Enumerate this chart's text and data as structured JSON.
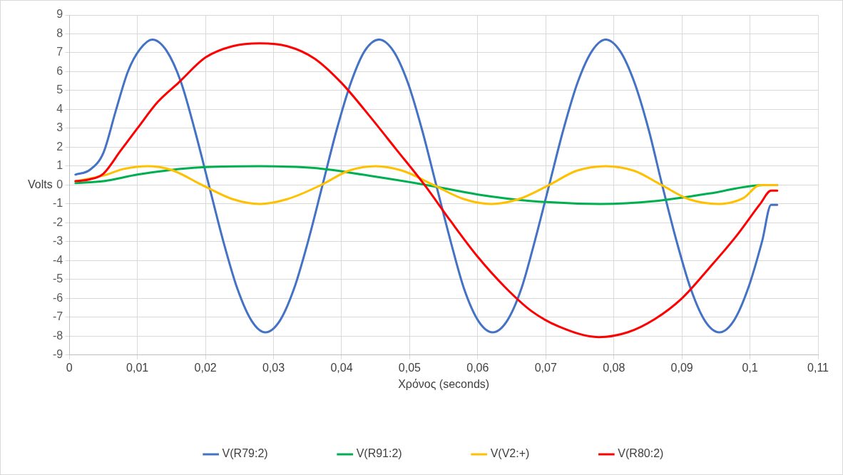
{
  "chart_data": {
    "type": "line",
    "xlabel": "Χρόνος (seconds)",
    "ylabel": "Volts",
    "xlim": [
      0,
      0.11
    ],
    "xticks": [
      0,
      {
        "value": 0.01,
        "label": "0,01"
      },
      {
        "value": 0.02,
        "label": "0,02"
      },
      {
        "value": 0.03,
        "label": "0,03"
      },
      {
        "value": 0.04,
        "label": "0,04"
      },
      {
        "value": 0.05,
        "label": "0,05"
      },
      {
        "value": 0.06,
        "label": "0,06"
      },
      {
        "value": 0.07,
        "label": "0,07"
      },
      {
        "value": 0.08,
        "label": "0,08"
      },
      {
        "value": 0.09,
        "label": "0,09"
      },
      {
        "value": 0.1,
        "label": "0,1"
      },
      {
        "value": 0.11,
        "label": "0,11"
      }
    ],
    "ylim": [
      -9,
      9
    ],
    "yticks": [
      -9,
      -8,
      -7,
      -6,
      -5,
      -4,
      -3,
      -2,
      -1,
      0,
      1,
      2,
      3,
      4,
      5,
      6,
      7,
      8,
      9
    ],
    "grid": true,
    "legend": "bottom",
    "line_style": "solid",
    "series": [
      {
        "name": "V(R79:2)",
        "color": "#4472c4",
        "x": [
          0.0009,
          0.003,
          0.005,
          0.0068,
          0.0086,
          0.0104,
          0.0122,
          0.0143,
          0.0164,
          0.0184,
          0.0205,
          0.0226,
          0.0247,
          0.0268,
          0.0288,
          0.0309,
          0.033,
          0.0351,
          0.0372,
          0.0393,
          0.0414,
          0.0434,
          0.0455,
          0.0476,
          0.0497,
          0.0518,
          0.0539,
          0.056,
          0.058,
          0.0601,
          0.0622,
          0.0643,
          0.0664,
          0.0684,
          0.0705,
          0.0726,
          0.0747,
          0.0768,
          0.0788,
          0.0809,
          0.083,
          0.0851,
          0.0871,
          0.0892,
          0.0913,
          0.0934,
          0.0955,
          0.0976,
          0.0997,
          0.1018,
          0.1031,
          0.104
        ],
        "values": [
          0.55,
          0.8,
          1.7,
          3.9,
          6.0,
          7.2,
          7.7,
          7.1,
          5.45,
          2.95,
          0,
          -2.95,
          -5.5,
          -7.2,
          -7.8,
          -7.2,
          -5.5,
          -2.95,
          0,
          2.95,
          5.45,
          7.1,
          7.7,
          7.1,
          5.45,
          2.95,
          0,
          -2.95,
          -5.5,
          -7.2,
          -7.8,
          -7.2,
          -5.5,
          -2.95,
          0,
          2.95,
          5.45,
          7.1,
          7.7,
          7.1,
          5.45,
          2.95,
          0,
          -2.95,
          -5.5,
          -7.2,
          -7.8,
          -7.2,
          -5.5,
          -2.95,
          -1.05,
          -1.05
        ]
      },
      {
        "name": "V(R91:2)",
        "color": "#00b050",
        "x": [
          0.0009,
          0.005,
          0.01,
          0.015,
          0.02,
          0.028,
          0.036,
          0.044,
          0.0525,
          0.06,
          0.068,
          0.078,
          0.086,
          0.094,
          0.102,
          0.104
        ],
        "values": [
          0.1,
          0.2,
          0.55,
          0.8,
          0.95,
          1.0,
          0.9,
          0.5,
          0,
          -0.5,
          -0.85,
          -1.0,
          -0.85,
          -0.45,
          0,
          0
        ]
      },
      {
        "name": "V(V2:+)",
        "color": "#ffc000",
        "x": [
          0.0009,
          0.005,
          0.008,
          0.0115,
          0.015,
          0.0195,
          0.024,
          0.028,
          0.032,
          0.037,
          0.041,
          0.045,
          0.049,
          0.0535,
          0.058,
          0.062,
          0.066,
          0.0705,
          0.0745,
          0.0788,
          0.083,
          0.087,
          0.091,
          0.0955,
          0.099,
          0.1015,
          0.104
        ],
        "values": [
          0.2,
          0.5,
          0.85,
          1.0,
          0.8,
          0,
          -0.75,
          -1.0,
          -0.75,
          0,
          0.75,
          1.0,
          0.75,
          0,
          -0.75,
          -1.0,
          -0.75,
          0,
          0.75,
          1.0,
          0.75,
          0,
          -0.75,
          -1.0,
          -0.7,
          0,
          0
        ]
      },
      {
        "name": "V(R80:2)",
        "color": "#ff0000",
        "x": [
          0.0009,
          0.003,
          0.005,
          0.0075,
          0.01,
          0.013,
          0.016,
          0.02,
          0.024,
          0.028,
          0.032,
          0.036,
          0.04,
          0.044,
          0.048,
          0.0522,
          0.056,
          0.06,
          0.064,
          0.068,
          0.072,
          0.0778,
          0.082,
          0.086,
          0.09,
          0.094,
          0.098,
          0.1015,
          0.1031,
          0.104
        ],
        "values": [
          0.2,
          0.3,
          0.6,
          1.8,
          3.0,
          4.4,
          5.4,
          6.75,
          7.35,
          7.5,
          7.35,
          6.7,
          5.4,
          3.7,
          1.9,
          0,
          -1.9,
          -3.8,
          -5.4,
          -6.7,
          -7.5,
          -8.05,
          -7.8,
          -7.1,
          -6.0,
          -4.4,
          -2.7,
          -1.0,
          -0.3,
          -0.3
        ]
      }
    ]
  }
}
